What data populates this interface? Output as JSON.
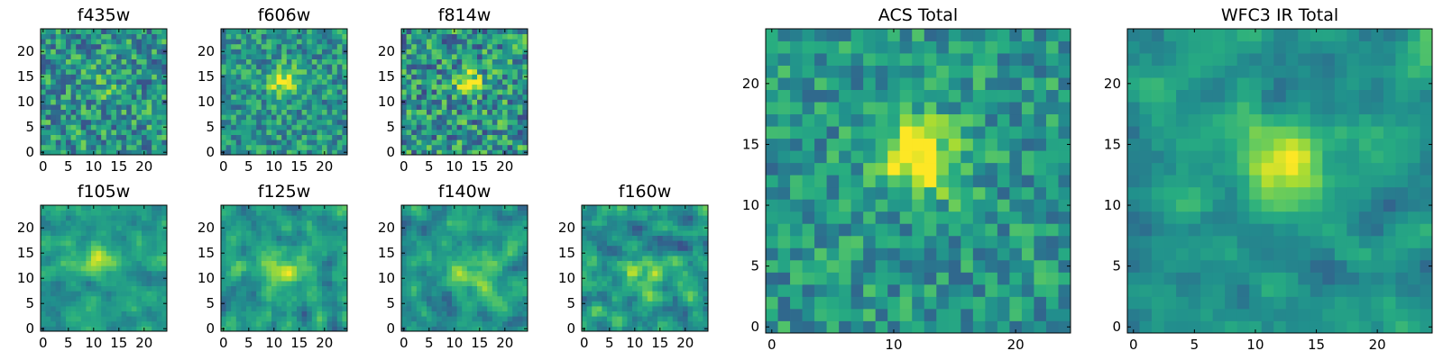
{
  "chart_data": [
    {
      "type": "heatmap",
      "title": "f435w",
      "grid_size": [
        25,
        25
      ],
      "xlim": [
        -0.5,
        24.5
      ],
      "ylim": [
        -0.5,
        24.5
      ],
      "xticks": [
        0,
        5,
        10,
        15,
        20
      ],
      "yticks": [
        0,
        5,
        10,
        15,
        20
      ],
      "colormap": "viridis",
      "source_peak": [
        12,
        14
      ]
    },
    {
      "type": "heatmap",
      "title": "f606w",
      "grid_size": [
        25,
        25
      ],
      "xlim": [
        -0.5,
        24.5
      ],
      "ylim": [
        -0.5,
        24.5
      ],
      "xticks": [
        0,
        5,
        10,
        15,
        20
      ],
      "yticks": [
        0,
        5,
        10,
        15,
        20
      ],
      "colormap": "viridis",
      "source_peak": [
        12,
        14
      ]
    },
    {
      "type": "heatmap",
      "title": "f814w",
      "grid_size": [
        25,
        25
      ],
      "xlim": [
        -0.5,
        24.5
      ],
      "ylim": [
        -0.5,
        24.5
      ],
      "xticks": [
        0,
        5,
        10,
        15,
        20
      ],
      "yticks": [
        0,
        5,
        10,
        15,
        20
      ],
      "colormap": "viridis",
      "source_peak": [
        13,
        14
      ]
    },
    {
      "type": "heatmap",
      "title": "f105w",
      "grid_size": [
        25,
        25
      ],
      "xlim": [
        -0.5,
        24.5
      ],
      "ylim": [
        -0.5,
        24.5
      ],
      "xticks": [
        0,
        5,
        10,
        15,
        20
      ],
      "yticks": [
        0,
        5,
        10,
        15,
        20
      ],
      "colormap": "viridis",
      "source_peak": [
        11,
        13
      ]
    },
    {
      "type": "heatmap",
      "title": "f125w",
      "grid_size": [
        25,
        25
      ],
      "xlim": [
        -0.5,
        24.5
      ],
      "ylim": [
        -0.5,
        24.5
      ],
      "xticks": [
        0,
        5,
        10,
        15,
        20
      ],
      "yticks": [
        0,
        5,
        10,
        15,
        20
      ],
      "colormap": "viridis",
      "source_peak": [
        12,
        12
      ]
    },
    {
      "type": "heatmap",
      "title": "f140w",
      "grid_size": [
        25,
        25
      ],
      "xlim": [
        -0.5,
        24.5
      ],
      "ylim": [
        -0.5,
        24.5
      ],
      "xticks": [
        0,
        5,
        10,
        15,
        20
      ],
      "yticks": [
        0,
        5,
        10,
        15,
        20
      ],
      "colormap": "viridis",
      "source_peak": [
        13,
        11
      ]
    },
    {
      "type": "heatmap",
      "title": "f160w",
      "grid_size": [
        25,
        25
      ],
      "xlim": [
        -0.5,
        24.5
      ],
      "ylim": [
        -0.5,
        24.5
      ],
      "xticks": [
        0,
        5,
        10,
        15,
        20
      ],
      "yticks": [
        0,
        5,
        10,
        15,
        20
      ],
      "colormap": "viridis",
      "source_peak": [
        13,
        11
      ]
    },
    {
      "type": "heatmap",
      "title": "ACS Total",
      "grid_size": [
        25,
        25
      ],
      "xlim": [
        -0.5,
        24.5
      ],
      "ylim": [
        -0.5,
        24.5
      ],
      "xticks": [
        0,
        10,
        20
      ],
      "yticks": [
        0,
        5,
        10,
        15,
        20
      ],
      "colormap": "viridis",
      "source_peak": [
        12,
        14
      ]
    },
    {
      "type": "heatmap",
      "title": "WFC3 IR Total",
      "grid_size": [
        25,
        25
      ],
      "xlim": [
        -0.5,
        24.5
      ],
      "ylim": [
        -0.5,
        24.5
      ],
      "xticks": [
        0,
        5,
        10,
        15,
        20
      ],
      "yticks": [
        0,
        5,
        10,
        15,
        20
      ],
      "colormap": "viridis",
      "source_peak": [
        12,
        13
      ]
    }
  ]
}
